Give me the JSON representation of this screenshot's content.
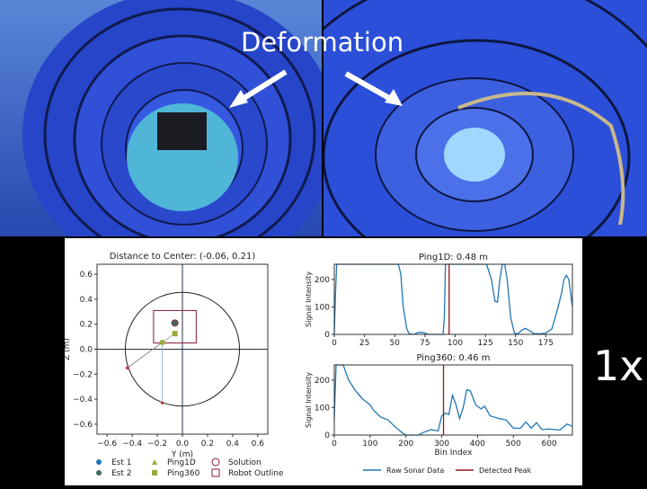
{
  "overlay": {
    "caption": "Deformation",
    "speed": "1x"
  },
  "colors": {
    "water": "#1c3fc0",
    "tunnel": "#2f53d8",
    "raw": "#1f77b4",
    "peak": "#8b1a1a",
    "outline": "#8b1a3a",
    "marker": "#9aaa3a",
    "est2": "#3d6b5a"
  },
  "chart_data": [
    {
      "type": "scatter",
      "title": "Distance to Center: (-0.06, 0.21)",
      "xlabel": "Y (m)",
      "ylabel": "Z (m)",
      "xlim": [
        -0.68,
        0.68
      ],
      "ylim": [
        -0.68,
        0.68
      ],
      "xticks": [
        "−0.6",
        "−0.4",
        "−0.2",
        "0.0",
        "0.2",
        "0.4",
        "0.6"
      ],
      "yticks": [
        "0.6",
        "0.4",
        "0.2",
        "0.0",
        "−0.2",
        "−0.4",
        "−0.6"
      ],
      "tunnel_circle_radius": 0.455,
      "robot_outline": {
        "y": [
          -0.23,
          0.11
        ],
        "z": [
          0.05,
          0.31
        ]
      },
      "solution": [
        -0.06,
        0.21
      ],
      "est1": [
        -0.06,
        0.21
      ],
      "est2": [
        -0.06,
        0.21
      ],
      "ping1d": [
        -0.16,
        0.055
      ],
      "ping360": [
        -0.06,
        0.125
      ],
      "ping1d_hit": [
        -0.16,
        -0.43
      ],
      "ping360_hit": [
        -0.44,
        -0.15
      ],
      "legend": [
        "Est 1",
        "Est 2",
        "Ping1D",
        "Ping360",
        "Solution",
        "Robot Outline"
      ],
      "legend_placement": "bottom"
    },
    {
      "type": "line",
      "title": "Ping1D: 0.48 m",
      "ylabel": "Signal Intensity",
      "xlim": [
        0,
        197
      ],
      "ylim": [
        0,
        255
      ],
      "xticks": [
        0,
        25,
        50,
        75,
        100,
        125,
        150,
        175
      ],
      "yticks": [
        0,
        100,
        200
      ],
      "detected_peak": 95,
      "points": [
        [
          0,
          0
        ],
        [
          1,
          150
        ],
        [
          2,
          255
        ],
        [
          53,
          255
        ],
        [
          55,
          220
        ],
        [
          57,
          100
        ],
        [
          60,
          20
        ],
        [
          62,
          2
        ],
        [
          66,
          0
        ],
        [
          70,
          8
        ],
        [
          74,
          6
        ],
        [
          78,
          0
        ],
        [
          90,
          0
        ],
        [
          91,
          60
        ],
        [
          92,
          255
        ],
        [
          126,
          255
        ],
        [
          130,
          200
        ],
        [
          133,
          120
        ],
        [
          135,
          118
        ],
        [
          137,
          200
        ],
        [
          139,
          255
        ],
        [
          141,
          255
        ],
        [
          143,
          200
        ],
        [
          146,
          60
        ],
        [
          149,
          5
        ],
        [
          152,
          2
        ],
        [
          155,
          15
        ],
        [
          158,
          22
        ],
        [
          161,
          15
        ],
        [
          165,
          3
        ],
        [
          170,
          2
        ],
        [
          175,
          5
        ],
        [
          180,
          20
        ],
        [
          184,
          80
        ],
        [
          188,
          150
        ],
        [
          190,
          200
        ],
        [
          192,
          215
        ],
        [
          194,
          200
        ],
        [
          197,
          100
        ]
      ]
    },
    {
      "type": "line",
      "title": "Ping360: 0.46 m",
      "xlabel": "Bin Index",
      "ylabel": "Signal Intensity",
      "xlim": [
        0,
        665
      ],
      "ylim": [
        0,
        255
      ],
      "xticks": [
        0,
        100,
        200,
        300,
        400,
        500,
        600
      ],
      "yticks": [
        0,
        100,
        200
      ],
      "detected_peak": 305,
      "points": [
        [
          0,
          60
        ],
        [
          5,
          255
        ],
        [
          25,
          255
        ],
        [
          40,
          200
        ],
        [
          60,
          160
        ],
        [
          80,
          130
        ],
        [
          100,
          110
        ],
        [
          110,
          90
        ],
        [
          130,
          65
        ],
        [
          150,
          55
        ],
        [
          170,
          30
        ],
        [
          190,
          8
        ],
        [
          200,
          0
        ],
        [
          235,
          0
        ],
        [
          250,
          10
        ],
        [
          270,
          20
        ],
        [
          290,
          15
        ],
        [
          300,
          70
        ],
        [
          310,
          80
        ],
        [
          320,
          75
        ],
        [
          330,
          145
        ],
        [
          340,
          110
        ],
        [
          350,
          60
        ],
        [
          360,
          100
        ],
        [
          370,
          165
        ],
        [
          380,
          160
        ],
        [
          395,
          110
        ],
        [
          410,
          95
        ],
        [
          420,
          105
        ],
        [
          435,
          70
        ],
        [
          460,
          60
        ],
        [
          480,
          55
        ],
        [
          500,
          25
        ],
        [
          520,
          25
        ],
        [
          535,
          48
        ],
        [
          550,
          25
        ],
        [
          565,
          45
        ],
        [
          580,
          20
        ],
        [
          600,
          22
        ],
        [
          630,
          18
        ],
        [
          650,
          40
        ],
        [
          665,
          32
        ]
      ],
      "legend": [
        "Raw Sonar Data",
        "Detected Peak"
      ],
      "legend_placement": "bottom"
    }
  ]
}
